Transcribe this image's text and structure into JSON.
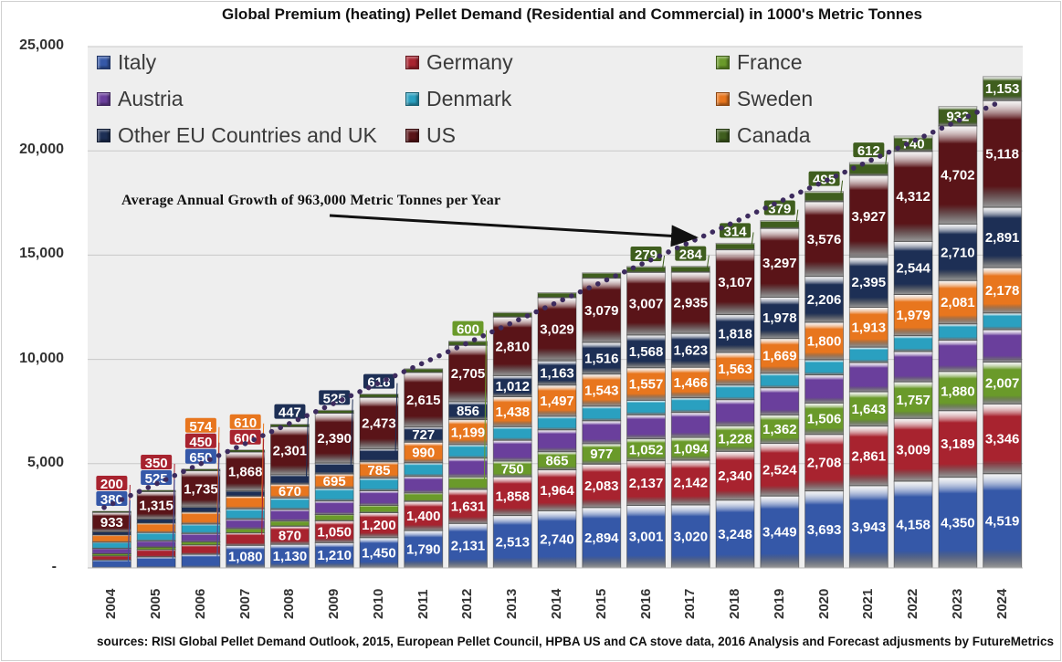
{
  "chart_data": {
    "type": "bar",
    "stacked": true,
    "title": "Global Premium (heating) Pellet Demand (Residential and Commercial) in 1000's Metric Tonnes",
    "xlabel": "",
    "ylabel": "",
    "ylim": [
      0,
      25000
    ],
    "yticks": [
      "-",
      "5,000",
      "10,000",
      "15,000",
      "20,000",
      "25,000"
    ],
    "grid": true,
    "legend_position": "top",
    "categories": [
      "2004",
      "2005",
      "2006",
      "2007",
      "2008",
      "2009",
      "2010",
      "2011",
      "2012",
      "2013",
      "2014",
      "2015",
      "2016",
      "2017",
      "2018",
      "2019",
      "2020",
      "2021",
      "2022",
      "2023",
      "2024"
    ],
    "series": [
      {
        "name": "Italy",
        "color": "#3558a8",
        "labeled": true,
        "values": [
          380,
          525,
          650,
          1080,
          1130,
          1210,
          1450,
          1790,
          2131,
          2513,
          2740,
          2894,
          3001,
          3020,
          3248,
          3449,
          3693,
          3943,
          4158,
          4350,
          4519
        ]
      },
      {
        "name": "Germany",
        "color": "#a8232f",
        "labeled": true,
        "values": [
          200,
          350,
          450,
          600,
          870,
          1050,
          1200,
          1400,
          1631,
          1858,
          1964,
          2083,
          2137,
          2142,
          2340,
          2524,
          2708,
          2861,
          3009,
          3189,
          3346
        ]
      },
      {
        "name": "France",
        "color": "#6a9a2a",
        "labeled_from_index": 8,
        "values": [
          100,
          120,
          150,
          200,
          250,
          300,
          350,
          400,
          600,
          750,
          865,
          977,
          1052,
          1094,
          1228,
          1362,
          1506,
          1643,
          1757,
          1880,
          2007
        ]
      },
      {
        "name": "Austria",
        "color": "#6a3f9c",
        "labeled": false,
        "values": [
          250,
          300,
          400,
          450,
          550,
          650,
          700,
          800,
          900,
          1000,
          1050,
          1100,
          1150,
          1200,
          1250,
          1300,
          1350,
          1400,
          1450,
          1500,
          1550
        ]
      },
      {
        "name": "Denmark",
        "color": "#2aa0c0",
        "labeled": false,
        "values": [
          300,
          400,
          450,
          500,
          550,
          600,
          600,
          650,
          650,
          650,
          650,
          700,
          700,
          700,
          700,
          700,
          720,
          740,
          760,
          780,
          800
        ]
      },
      {
        "name": "Sweden",
        "color": "#e8761e",
        "labeled_from_index": 2,
        "values": [
          350,
          450,
          574,
          610,
          670,
          695,
          785,
          990,
          1199,
          1438,
          1497,
          1543,
          1557,
          1466,
          1563,
          1669,
          1800,
          1913,
          1979,
          2081,
          2178
        ]
      },
      {
        "name": "Other EU Countries and UK",
        "color": "#1d2f55",
        "labeled_from_index": 8,
        "values": [
          150,
          200,
          250,
          250,
          447,
          525,
          618,
          727,
          856,
          1012,
          1163,
          1516,
          1568,
          1623,
          1818,
          1978,
          2206,
          2395,
          2544,
          2710,
          2891
        ]
      },
      {
        "name": "US",
        "color": "#5a1418",
        "labeled": true,
        "values": [
          933,
          1315,
          1735,
          1868,
          2301,
          2390,
          2473,
          2615,
          2705,
          2810,
          3029,
          3079,
          3007,
          2935,
          3107,
          3297,
          3576,
          3927,
          4312,
          4702,
          5118
        ]
      },
      {
        "name": "Canada",
        "color": "#3f5e1e",
        "labeled_from_index": 15,
        "values": [
          50,
          60,
          80,
          100,
          120,
          140,
          160,
          180,
          200,
          220,
          240,
          260,
          279,
          284,
          314,
          379,
          495,
          612,
          740,
          932,
          1153
        ]
      }
    ],
    "data_labels": {
      "Italy": [
        "380",
        "525",
        "650",
        "1,080",
        "1,130",
        "1,210",
        "1,450",
        "1,790",
        "2,131",
        "2,513",
        "2,740",
        "2,894",
        "3,001",
        "3,020",
        "3,248",
        "3,449",
        "3,693",
        "3,943",
        "4,158",
        "4,350",
        "4,519"
      ],
      "Germany": [
        "200",
        "350",
        "450",
        "600",
        "870",
        "1,050",
        "1,200",
        "1,400",
        "1,631",
        "1,858",
        "1,964",
        "2,083",
        "2,137",
        "2,142",
        "2,340",
        "2,524",
        "2,708",
        "2,861",
        "3,009",
        "3,189",
        "3,346"
      ],
      "France": [
        "",
        "",
        "",
        "",
        "",
        "",
        "",
        "",
        "600",
        "750",
        "865",
        "977",
        "1,052",
        "1,094",
        "1,228",
        "1,362",
        "1,506",
        "1,643",
        "1,757",
        "1,880",
        "2,007"
      ],
      "Austria": [
        "",
        "",
        "",
        "",
        "",
        "",
        "",
        "",
        "",
        "",
        "",
        "",
        "",
        "",
        "",
        "",
        "",
        "",
        "",
        "",
        ""
      ],
      "Denmark": [
        "",
        "",
        "",
        "",
        "",
        "",
        "",
        "",
        "",
        "",
        "",
        "",
        "",
        "",
        "",
        "",
        "",
        "",
        "",
        "",
        ""
      ],
      "Sweden": [
        "",
        "",
        "574",
        "610",
        "670",
        "695",
        "785",
        "990",
        "1,199",
        "1,438",
        "1,497",
        "1,543",
        "1,557",
        "1,466",
        "1,563",
        "1,669",
        "1,800",
        "1,913",
        "1,979",
        "2,081",
        "2,178"
      ],
      "Other EU Countries and UK": [
        "",
        "",
        "",
        "",
        "447",
        "525",
        "618",
        "727",
        "856",
        "1,012",
        "1,163",
        "1,516",
        "1,568",
        "1,623",
        "1,818",
        "1,978",
        "2,206",
        "2,395",
        "2,544",
        "2,710",
        "2,891"
      ],
      "US": [
        "933",
        "1,315",
        "1,735",
        "1,868",
        "2,301",
        "2,390",
        "2,473",
        "2,615",
        "2,705",
        "2,810",
        "3,029",
        "3,079",
        "3,007",
        "2,935",
        "3,107",
        "3,297",
        "3,576",
        "3,927",
        "4,312",
        "4,702",
        "5,118"
      ],
      "Canada": [
        "",
        "",
        "",
        "",
        "",
        "",
        "",
        "",
        "",
        "",
        "",
        "",
        "279",
        "284",
        "314",
        "379",
        "495",
        "612",
        "740",
        "932",
        "1,153"
      ]
    },
    "trendline": {
      "style": "dotted",
      "color": "#3d2b5e",
      "start_value": 2900,
      "end_value": 22400
    },
    "annotation": "Average Annual Growth  of 963,000 Metric Tonnes per Year",
    "source": "sources: RISI Global Pellet Demand Outlook, 2015, European Pellet Council, HPBA US and CA stove data, 2016  Analysis and Forecast adjusments by FutureMetrics"
  }
}
